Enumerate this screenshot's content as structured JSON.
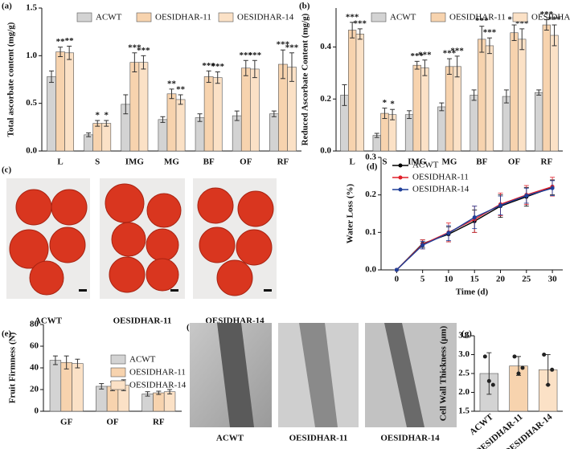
{
  "chart_data": [
    {
      "panel": "(a)",
      "type": "bar",
      "ylabel": "Total ascorbate content (mg/g)",
      "legend": "top",
      "categories": [
        "L",
        "S",
        "IMG",
        "MG",
        "BF",
        "OF",
        "RF"
      ],
      "ylim": [
        0,
        1.5
      ],
      "yticks": [
        {
          "value": 0,
          "label": "0.0"
        },
        0.5,
        {
          "value": 1,
          "label": "1.0"
        },
        1.5
      ],
      "series": [
        {
          "name": "ACWT",
          "color": "#d3d3d3",
          "values": [
            0.78,
            0.17,
            0.49,
            0.33,
            0.35,
            0.37,
            0.39
          ],
          "errors": [
            0.06,
            0.02,
            0.1,
            0.03,
            0.04,
            0.05,
            0.03
          ],
          "significance": [
            null,
            null,
            null,
            null,
            null,
            null,
            null
          ]
        },
        {
          "name": "OESIDHAR-11",
          "color": "#f7d3ae",
          "values": [
            1.04,
            0.29,
            0.93,
            0.6,
            0.78,
            0.87,
            0.91
          ],
          "errors": [
            0.05,
            0.03,
            0.1,
            0.05,
            0.06,
            0.08,
            0.15
          ],
          "significance": [
            "**",
            "*",
            "***",
            "**",
            "***",
            "***",
            "***"
          ]
        },
        {
          "name": "OESIDHAR-14",
          "color": "#fbe1c6",
          "values": [
            1.03,
            0.29,
            0.93,
            0.54,
            0.77,
            0.86,
            0.88
          ],
          "errors": [
            0.07,
            0.03,
            0.07,
            0.05,
            0.06,
            0.09,
            0.15
          ],
          "significance": [
            "**",
            "*",
            "***",
            "**",
            "***",
            "***",
            "***"
          ]
        }
      ]
    },
    {
      "panel": "(b)",
      "type": "bar",
      "ylabel": "Reduced Ascorbate Content (mg/g)",
      "legend": "top",
      "categories": [
        "L",
        "S",
        "IMG",
        "MG",
        "BF",
        "OF",
        "RF"
      ],
      "ylim": [
        0,
        0.55
      ],
      "yticks": [
        {
          "value": 0,
          "label": "0.0"
        },
        0.2,
        0.4
      ],
      "series": [
        {
          "name": "ACWT",
          "color": "#d3d3d3",
          "values": [
            0.215,
            0.06,
            0.14,
            0.17,
            0.215,
            0.21,
            0.225
          ],
          "errors": [
            0.04,
            0.008,
            0.015,
            0.015,
            0.02,
            0.025,
            0.01
          ],
          "significance": [
            null,
            null,
            null,
            null,
            null,
            null,
            null
          ]
        },
        {
          "name": "OESIDHAR-11",
          "color": "#f7d3ae",
          "values": [
            0.465,
            0.145,
            0.33,
            0.325,
            0.43,
            0.455,
            0.485
          ],
          "errors": [
            0.03,
            0.02,
            0.015,
            0.03,
            0.05,
            0.03,
            0.02
          ],
          "significance": [
            "***",
            "*",
            "***",
            "***",
            "***",
            "***",
            "***"
          ]
        },
        {
          "name": "OESIDHAR-14",
          "color": "#fbe1c6",
          "values": [
            0.45,
            0.14,
            0.32,
            0.325,
            0.405,
            0.43,
            0.445
          ],
          "errors": [
            0.02,
            0.02,
            0.03,
            0.04,
            0.03,
            0.04,
            0.04
          ],
          "significance": [
            "***",
            "*",
            "***",
            "***",
            "***",
            "***",
            "***"
          ]
        }
      ]
    },
    {
      "panel": "(d)",
      "type": "line",
      "xlabel": "Time (d)",
      "ylabel": "Water Loss (%)",
      "legend": "upper left",
      "x": [
        0,
        5,
        10,
        15,
        20,
        25,
        30
      ],
      "xlim": [
        -3,
        32
      ],
      "xticks": [
        0,
        5,
        10,
        15,
        20,
        25,
        30
      ],
      "ylim": [
        0,
        0.3
      ],
      "yticks": [
        {
          "value": 0,
          "label": "0.0"
        },
        0.1,
        0.2,
        0.3
      ],
      "series": [
        {
          "name": "ACWT",
          "color": "#000000",
          "values": [
            0,
            0.07,
            0.095,
            0.13,
            0.17,
            0.195,
            0.22
          ],
          "errors": [
            0,
            0.01,
            0.02,
            0.03,
            0.03,
            0.025,
            0.02
          ]
        },
        {
          "name": "OESIDHAR-11",
          "color": "#e0202a",
          "values": [
            0,
            0.068,
            0.1,
            0.135,
            0.175,
            0.2,
            0.222
          ],
          "errors": [
            0,
            0.012,
            0.025,
            0.035,
            0.03,
            0.025,
            0.025
          ]
        },
        {
          "name": "OESIDHAR-14",
          "color": "#1f3f99",
          "values": [
            0,
            0.066,
            0.098,
            0.14,
            0.172,
            0.198,
            0.218
          ],
          "errors": [
            0,
            0.01,
            0.02,
            0.03,
            0.025,
            0.02,
            0.02
          ]
        }
      ]
    },
    {
      "panel": "(e)",
      "type": "bar",
      "ylabel": "Fruit Firmness (N)",
      "legend": "right",
      "categories": [
        "GF",
        "OF",
        "RF"
      ],
      "ylim": [
        0,
        80
      ],
      "yticks": [
        0,
        20,
        40,
        60,
        80
      ],
      "series": [
        {
          "name": "ACWT",
          "color": "#d3d3d3",
          "values": [
            47,
            23,
            16
          ],
          "errors": [
            4,
            2.5,
            2
          ]
        },
        {
          "name": "OESIDHAR-11",
          "color": "#f7d3ae",
          "values": [
            45,
            23,
            17
          ],
          "errors": [
            6,
            4,
            1.5
          ]
        },
        {
          "name": "OESIDHAR-14",
          "color": "#fbe1c6",
          "values": [
            44,
            24,
            18
          ],
          "errors": [
            4,
            5,
            2
          ]
        }
      ]
    },
    {
      "panel": "(g)",
      "type": "bar",
      "ylabel": "Cell Wall Thickness (μm)",
      "rotate_labels": true,
      "categories": [
        "ACWT",
        "OESIDHAR-11",
        "OESIDHAR-14"
      ],
      "ylim": [
        1.5,
        3.5
      ],
      "yticks": [
        1.5,
        {
          "value": 2,
          "label": "2.0"
        },
        2.5,
        {
          "value": 3,
          "label": "3.0"
        },
        3.5
      ],
      "series": [
        {
          "colors": [
            "#d3d3d3",
            "#f7d3ae",
            "#fbe1c6"
          ],
          "values": [
            2.5,
            2.7,
            2.6
          ],
          "errors": [
            0.55,
            0.25,
            0.4
          ],
          "points": [
            [
              2.95,
              2.3,
              2.2
            ],
            [
              2.95,
              2.5,
              2.65
            ],
            [
              3.0,
              2.2,
              2.6
            ]
          ]
        }
      ]
    }
  ],
  "photos": [
    {
      "panel": "(c)",
      "captions": [
        "ACWT",
        "OESIDHAR-11",
        "OESIDHAR-14"
      ]
    },
    {
      "panel": "(f)",
      "captions": [
        "ACWT",
        "OESIDHAR-11",
        "OESIDHAR-14"
      ]
    }
  ]
}
